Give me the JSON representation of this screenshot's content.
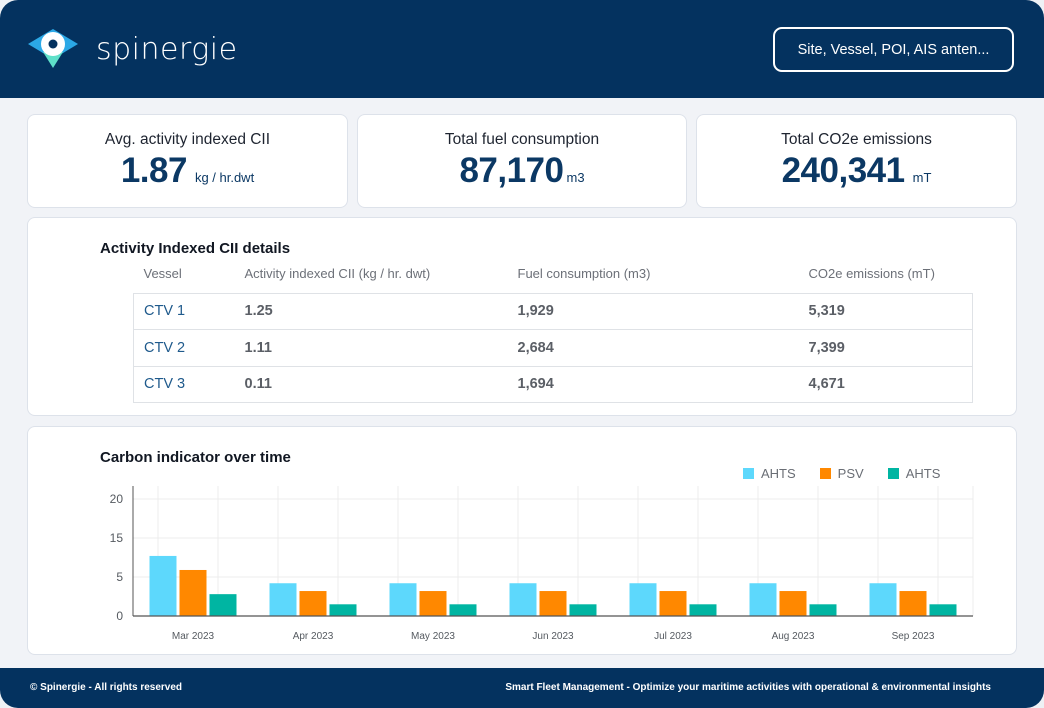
{
  "header": {
    "brand": "spinergie",
    "logo_icon": "map-pin-eye-icon",
    "search_label": "Site, Vessel, POI, AIS anten..."
  },
  "kpis": [
    {
      "label": "Avg. activity indexed CII",
      "value": "1.87",
      "unit": "kg / hr.dwt"
    },
    {
      "label": "Total fuel consumption",
      "value": "87,170",
      "unit": "m3"
    },
    {
      "label": "Total CO2e emissions",
      "value": "240,341",
      "unit": "mT"
    }
  ],
  "cii_table": {
    "title": "Activity Indexed CII details",
    "columns": [
      "Vessel",
      "Activity indexed CII (kg / hr. dwt)",
      "Fuel consumption (m3)",
      "CO2e emissions (mT)"
    ],
    "rows": [
      [
        "CTV 1",
        "1.25",
        "1,929",
        "5,319"
      ],
      [
        "CTV 2",
        "1.11",
        "2,684",
        "7,399"
      ],
      [
        "CTV 3",
        "0.11",
        "1,694",
        "4,671"
      ]
    ]
  },
  "chart_data": {
    "type": "bar",
    "title": "Carbon indicator over time",
    "xlabel": "",
    "ylabel": "",
    "categories": [
      "Mar 2023",
      "Apr 2023",
      "May 2023",
      "Jun 2023",
      "Jul 2023",
      "Aug 2023",
      "Sep 2023"
    ],
    "y_tick_labels": [
      "0",
      "5",
      "15",
      "20"
    ],
    "ylim": [
      0,
      20
    ],
    "grid": true,
    "legend_position": "top-right",
    "series": [
      {
        "name": "AHTS",
        "color": "#5dd8fc",
        "values": [
          7.7,
          4.2,
          4.2,
          4.2,
          4.2,
          4.2,
          4.2
        ]
      },
      {
        "name": "PSV",
        "color": "#ff8800",
        "values": [
          5.9,
          3.2,
          3.2,
          3.2,
          3.2,
          3.2,
          3.2
        ]
      },
      {
        "name": "AHTS",
        "color": "#00b5a2",
        "values": [
          2.8,
          1.5,
          1.5,
          1.5,
          1.5,
          1.5,
          1.5
        ]
      }
    ]
  },
  "footer": {
    "copyright": "© Spinergie - All rights reserved",
    "tagline": "Smart Fleet Management - Optimize your maritime activities with operational & environmental insights"
  }
}
